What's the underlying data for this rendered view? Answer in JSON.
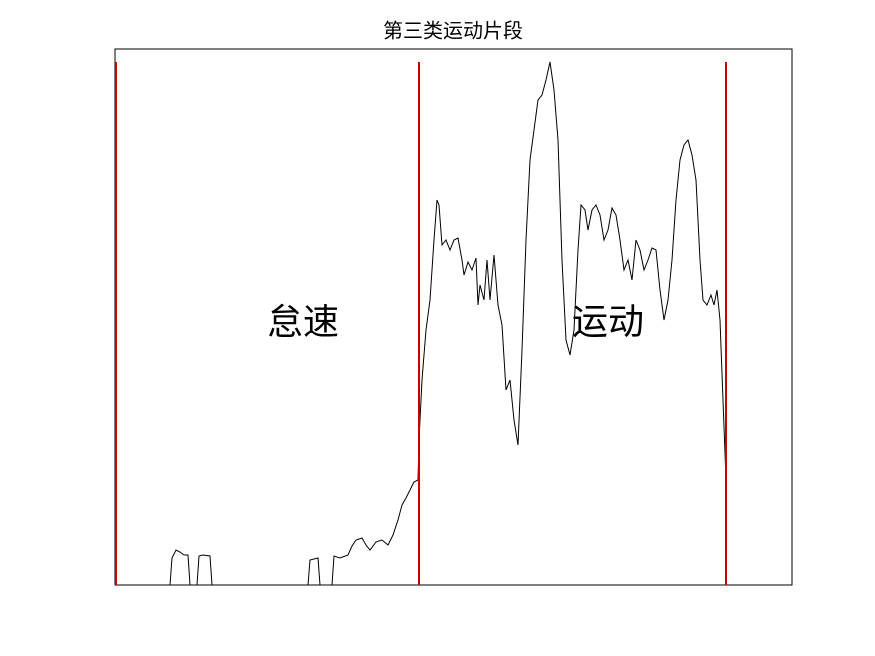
{
  "chart_data": {
    "type": "line",
    "title": "第三类运动片段",
    "annotations": [
      "怠速",
      "运动"
    ],
    "xlim": [
      0,
      677
    ],
    "ylim": [
      0,
      536
    ],
    "series": [
      {
        "color": "#000000",
        "x": [
          1,
          55,
          57,
          61,
          65,
          69,
          73,
          75,
          82,
          84,
          88,
          95,
          97,
          193,
          195,
          203,
          205,
          217,
          219,
          225,
          233,
          237,
          241,
          247,
          251,
          255,
          261,
          267,
          273,
          278,
          283,
          287,
          291,
          295,
          299,
          303,
          304,
          307,
          311,
          315,
          319,
          322,
          324,
          327,
          331,
          335,
          339,
          343,
          347,
          349,
          353,
          357,
          361,
          363,
          365,
          369,
          372,
          375,
          379,
          383,
          387,
          391,
          395,
          399,
          403,
          407,
          411,
          415,
          419,
          423,
          427,
          431,
          435,
          439,
          443,
          447,
          451,
          455,
          459,
          463,
          466,
          470,
          473,
          477,
          481,
          485,
          489,
          493,
          497,
          501,
          505,
          509,
          513,
          517,
          521,
          525,
          529,
          533,
          537,
          541,
          545,
          549,
          553,
          557,
          561,
          565,
          569,
          573,
          577,
          581,
          585,
          588,
          592,
          596,
          599,
          602,
          605,
          608,
          611
        ],
        "values": [
          0,
          0,
          27,
          35,
          33,
          30,
          30,
          0,
          0,
          29,
          30,
          29,
          0,
          0,
          25,
          27,
          0,
          0,
          29,
          27,
          30,
          39,
          45,
          47,
          40,
          35,
          43,
          45,
          40,
          50,
          65,
          80,
          87,
          95,
          103,
          105,
          145,
          205,
          255,
          285,
          345,
          385,
          380,
          340,
          345,
          335,
          345,
          347,
          325,
          310,
          323,
          315,
          327,
          280,
          300,
          285,
          325,
          285,
          330,
          280,
          260,
          195,
          205,
          165,
          140,
          235,
          345,
          425,
          455,
          485,
          490,
          505,
          523,
          495,
          445,
          325,
          245,
          230,
          255,
          335,
          380,
          375,
          355,
          375,
          380,
          370,
          345,
          355,
          377,
          370,
          345,
          315,
          325,
          305,
          345,
          335,
          315,
          325,
          337,
          335,
          295,
          265,
          285,
          325,
          385,
          425,
          440,
          445,
          430,
          405,
          325,
          285,
          280,
          290,
          280,
          295,
          265,
          185,
          105
        ]
      }
    ],
    "vlines": {
      "x": [
        1,
        304,
        611
      ],
      "top": 523,
      "color": "#cc0000"
    }
  }
}
